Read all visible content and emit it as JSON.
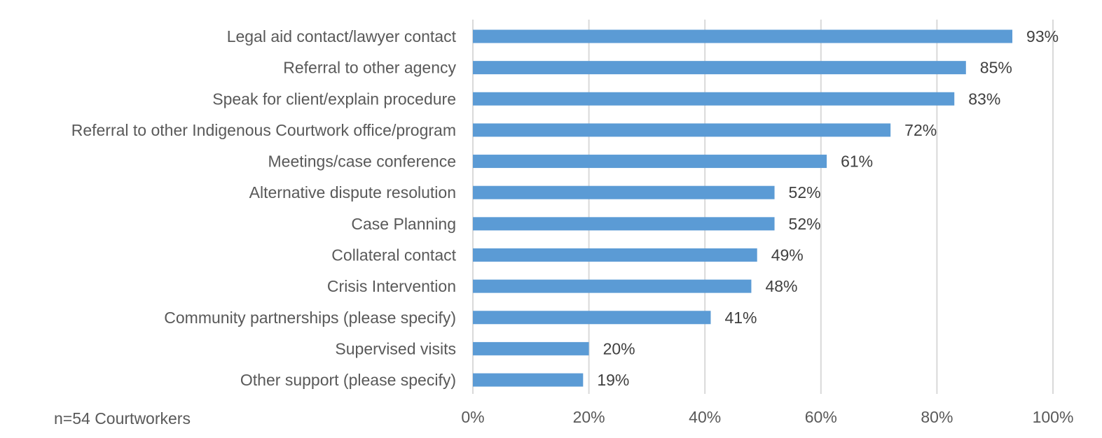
{
  "chart_data": {
    "type": "bar",
    "orientation": "horizontal",
    "categories": [
      "Legal aid contact/lawyer contact",
      "Referral to other agency",
      "Speak for client/explain procedure",
      "Referral to other Indigenous Courtwork office/program",
      "Meetings/case conference",
      "Alternative dispute resolution",
      "Case Planning",
      "Collateral contact",
      "Crisis Intervention",
      "Community partnerships (please specify)",
      "Supervised visits",
      "Other support (please specify)"
    ],
    "values": [
      93,
      85,
      83,
      72,
      61,
      52,
      52,
      49,
      48,
      41,
      20,
      19
    ],
    "data_labels": [
      "93%",
      "85%",
      "83%",
      "72%",
      "61%",
      "52%",
      "52%",
      "49%",
      "48%",
      "41%",
      "20%",
      "19%"
    ],
    "x_ticks": [
      0,
      20,
      40,
      60,
      80,
      100
    ],
    "x_tick_labels": [
      "0%",
      "20%",
      "40%",
      "60%",
      "80%",
      "100%"
    ],
    "xlim": [
      0,
      100
    ],
    "grid": "vertical",
    "bar_color": "#5b9bd5",
    "gridline_color": "#d9d9d9",
    "title": "",
    "xlabel": "",
    "ylabel": "",
    "note": "n=54 Courtworkers"
  }
}
